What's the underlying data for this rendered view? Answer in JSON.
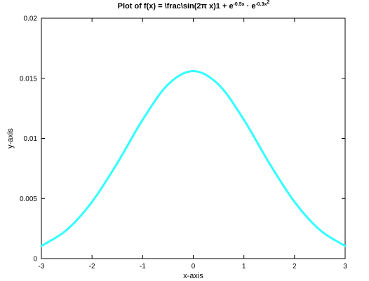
{
  "chart_data": {
    "type": "line",
    "title": {
      "main": "Plot of f(x) = \\frac\\sin(2π x)1 + e",
      "exp1": "-0.5x",
      "middle": " · e",
      "exp2": "-0.3x",
      "exp2_power": "2"
    },
    "xlabel": "x-axis",
    "ylabel": "y-axis",
    "xlim": [
      -3,
      3
    ],
    "ylim": [
      0,
      0.02
    ],
    "x_ticks": [
      -3,
      -2,
      -1,
      0,
      1,
      2,
      3
    ],
    "x_tick_labels": [
      "-3",
      "-2",
      "-1",
      "0",
      "1",
      "2",
      "3"
    ],
    "y_ticks": [
      0,
      0.005,
      0.01,
      0.015,
      0.02
    ],
    "y_tick_labels": [
      "0",
      "0.005",
      "0.01",
      "0.015",
      "0.02"
    ],
    "grid": false,
    "legend": "none",
    "series": [
      {
        "color": "#33ffff",
        "x": [
          -3,
          -2.5,
          -2,
          -1.5,
          -1,
          -0.5,
          0,
          0.5,
          1,
          1.5,
          2,
          2.5,
          3
        ],
        "y": [
          0.00105,
          0.00238,
          0.00472,
          0.00795,
          0.01155,
          0.01448,
          0.0156,
          0.01448,
          0.01155,
          0.00795,
          0.00472,
          0.00238,
          0.00105
        ]
      }
    ]
  }
}
